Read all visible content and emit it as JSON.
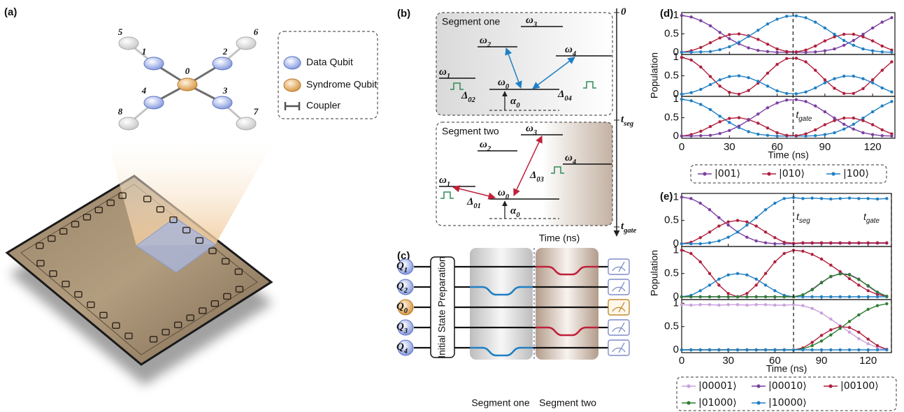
{
  "panel_a": {
    "label": "(a)",
    "qubits": [
      "0",
      "1",
      "2",
      "3",
      "4",
      "5",
      "6",
      "7",
      "8"
    ],
    "legend": [
      "Data Qubit",
      "Syndrome Qubit",
      "Coupler"
    ]
  },
  "panel_b": {
    "label": "(b)",
    "segments": [
      {
        "title": "Segment one",
        "levels": [
          {
            "sym": "ω",
            "sub": "0"
          },
          {
            "sym": "ω",
            "sub": "1"
          },
          {
            "sym": "ω",
            "sub": "2"
          },
          {
            "sym": "ω",
            "sub": "3"
          },
          {
            "sym": "ω",
            "sub": "4"
          }
        ],
        "couplings": [
          {
            "sym": "Δ",
            "sub": "02"
          },
          {
            "sym": "Δ",
            "sub": "04"
          }
        ],
        "anharmonicity": {
          "sym": "α",
          "sub": "0"
        }
      },
      {
        "title": "Segment two",
        "levels": [
          {
            "sym": "ω",
            "sub": "0"
          },
          {
            "sym": "ω",
            "sub": "1"
          },
          {
            "sym": "ω",
            "sub": "2"
          },
          {
            "sym": "ω",
            "sub": "3"
          },
          {
            "sym": "ω",
            "sub": "4"
          }
        ],
        "couplings": [
          {
            "sym": "Δ",
            "sub": "01"
          },
          {
            "sym": "Δ",
            "sub": "03"
          }
        ],
        "anharmonicity": {
          "sym": "α",
          "sub": "0"
        }
      }
    ],
    "time_ticks": [
      {
        "sym": "0",
        "sub": ""
      },
      {
        "sym": "t",
        "sub": "seg"
      },
      {
        "sym": "t",
        "sub": "gate"
      }
    ],
    "time_label": "Time (ns)"
  },
  "panel_c": {
    "label": "(c)",
    "qubits": [
      {
        "sym": "Q",
        "sub": "1"
      },
      {
        "sym": "Q",
        "sub": "2"
      },
      {
        "sym": "Q",
        "sub": "0"
      },
      {
        "sym": "Q",
        "sub": "3"
      },
      {
        "sym": "Q",
        "sub": "4"
      }
    ],
    "preparation": "Initial State Preparation",
    "segments": [
      "Segment one",
      "Segment two"
    ]
  },
  "chart_data": [
    {
      "type": "line",
      "panel_label": "(d)",
      "ylabel": "Population",
      "xlabel": "Time (ns)",
      "xlim": [
        0,
        134
      ],
      "xticks": [
        0,
        30,
        60,
        90,
        120
      ],
      "ylim": [
        -0.06,
        1.08
      ],
      "yticks": [
        0,
        0.5,
        1
      ],
      "vlines": [
        70
      ],
      "annotations": [
        {
          "sym": "t",
          "sub": "gate"
        }
      ],
      "legend": [
        {
          "name": "|001⟩",
          "color": "#7b3fa0"
        },
        {
          "name": "|010⟩",
          "color": "#b0203e"
        },
        {
          "name": "|100⟩",
          "color": "#1f7fc4"
        }
      ],
      "x": [
        0,
        6,
        12,
        18,
        24,
        30,
        36,
        42,
        48,
        54,
        60,
        66,
        72,
        78,
        84,
        90,
        96,
        102,
        108,
        114,
        120,
        126,
        132
      ],
      "rows": [
        {
          "series": [
            {
              "color": "#7b3fa0",
              "values": [
                1,
                0.96,
                0.86,
                0.72,
                0.54,
                0.37,
                0.23,
                0.12,
                0.05,
                0.02,
                0,
                0,
                0,
                0,
                0.01,
                0.04,
                0.09,
                0.19,
                0.32,
                0.49,
                0.66,
                0.82,
                0.94
              ]
            },
            {
              "color": "#b0203e",
              "values": [
                0,
                0.04,
                0.13,
                0.26,
                0.39,
                0.48,
                0.5,
                0.45,
                0.35,
                0.22,
                0.09,
                0.02,
                0.01,
                0.06,
                0.17,
                0.31,
                0.42,
                0.49,
                0.49,
                0.42,
                0.31,
                0.17,
                0.06
              ]
            },
            {
              "color": "#1f7fc4",
              "values": [
                0,
                0,
                0.01,
                0.02,
                0.07,
                0.15,
                0.27,
                0.43,
                0.6,
                0.77,
                0.9,
                0.98,
                0.99,
                0.94,
                0.82,
                0.66,
                0.49,
                0.32,
                0.19,
                0.09,
                0.04,
                0.01,
                0
              ]
            }
          ]
        },
        {
          "series": [
            {
              "color": "#b0203e",
              "values": [
                1,
                0.93,
                0.74,
                0.48,
                0.22,
                0.05,
                0,
                0.1,
                0.3,
                0.57,
                0.81,
                0.97,
                0.98,
                0.88,
                0.65,
                0.39,
                0.16,
                0.02,
                0.02,
                0.15,
                0.39,
                0.65,
                0.88
              ]
            },
            {
              "color": "#1f7fc4",
              "values": [
                0,
                0.04,
                0.13,
                0.26,
                0.39,
                0.48,
                0.5,
                0.45,
                0.35,
                0.22,
                0.09,
                0.02,
                0.01,
                0.06,
                0.17,
                0.31,
                0.42,
                0.49,
                0.49,
                0.42,
                0.31,
                0.17,
                0.06
              ]
            }
          ]
        },
        {
          "series": [
            {
              "color": "#1f7fc4",
              "values": [
                1,
                0.96,
                0.86,
                0.72,
                0.54,
                0.37,
                0.23,
                0.12,
                0.05,
                0.02,
                0,
                0,
                0,
                0,
                0.01,
                0.04,
                0.09,
                0.19,
                0.32,
                0.49,
                0.66,
                0.82,
                0.94
              ]
            },
            {
              "color": "#b0203e",
              "values": [
                0,
                0.04,
                0.13,
                0.26,
                0.39,
                0.48,
                0.5,
                0.45,
                0.35,
                0.22,
                0.09,
                0.02,
                0.01,
                0.06,
                0.17,
                0.31,
                0.42,
                0.49,
                0.49,
                0.42,
                0.31,
                0.17,
                0.06
              ]
            },
            {
              "color": "#7b3fa0",
              "values": [
                0,
                0,
                0.01,
                0.02,
                0.07,
                0.15,
                0.27,
                0.43,
                0.6,
                0.77,
                0.9,
                0.98,
                0.99,
                0.94,
                0.82,
                0.66,
                0.49,
                0.32,
                0.19,
                0.09,
                0.04,
                0.01,
                0
              ]
            }
          ]
        }
      ]
    },
    {
      "type": "line",
      "panel_label": "(e)",
      "ylabel": "Population",
      "xlabel": "Time (ns)",
      "xlim": [
        0,
        135
      ],
      "xticks": [
        0,
        30,
        60,
        90,
        120
      ],
      "ylim": [
        -0.06,
        1.08
      ],
      "yticks": [
        0,
        0.5,
        1
      ],
      "vlines": [
        72,
        135
      ],
      "annotations": [
        {
          "sym": "t",
          "sub": "seg"
        },
        {
          "sym": "t",
          "sub": "gate"
        }
      ],
      "legend": [
        {
          "name": "|00001⟩",
          "color": "#c9a0dc"
        },
        {
          "name": "|00010⟩",
          "color": "#7b3fa0"
        },
        {
          "name": "|00100⟩",
          "color": "#b0203e"
        },
        {
          "name": "|01000⟩",
          "color": "#2e7d32"
        },
        {
          "name": "|10000⟩",
          "color": "#1f7fc4"
        }
      ],
      "x": [
        0,
        6,
        12,
        18,
        24,
        30,
        36,
        42,
        48,
        54,
        60,
        66,
        72,
        78,
        84,
        90,
        96,
        102,
        108,
        114,
        120,
        126,
        132
      ],
      "rows": [
        {
          "series": [
            {
              "color": "#7b3fa0",
              "values": [
                1,
                0.97,
                0.87,
                0.73,
                0.56,
                0.4,
                0.25,
                0.14,
                0.06,
                0.02,
                0,
                0,
                0,
                0.01,
                0.01,
                0.01,
                0.01,
                0.01,
                0.01,
                0.01,
                0.01,
                0.01,
                0.01
              ]
            },
            {
              "color": "#b0203e",
              "values": [
                0,
                0.03,
                0.13,
                0.25,
                0.38,
                0.47,
                0.5,
                0.47,
                0.38,
                0.25,
                0.13,
                0.03,
                0.01,
                0.02,
                0.02,
                0.02,
                0.02,
                0.02,
                0.02,
                0.02,
                0.02,
                0.02,
                0.02
              ]
            },
            {
              "color": "#1f7fc4",
              "values": [
                0,
                0,
                0,
                0.02,
                0.06,
                0.14,
                0.25,
                0.4,
                0.56,
                0.73,
                0.87,
                0.97,
                0.99,
                0.97,
                0.98,
                0.97,
                0.96,
                0.97,
                0.98,
                0.97,
                0.97,
                0.96,
                0.97
              ]
            }
          ]
        },
        {
          "series": [
            {
              "color": "#b0203e",
              "values": [
                1,
                0.93,
                0.75,
                0.5,
                0.25,
                0.07,
                0,
                0.07,
                0.25,
                0.5,
                0.75,
                0.93,
                1,
                0.98,
                0.91,
                0.81,
                0.68,
                0.54,
                0.39,
                0.25,
                0.13,
                0.05,
                0.01
              ]
            },
            {
              "color": "#1f7fc4",
              "values": [
                0,
                0.03,
                0.13,
                0.25,
                0.38,
                0.47,
                0.5,
                0.47,
                0.38,
                0.25,
                0.13,
                0.03,
                0,
                0,
                0,
                0,
                0,
                0,
                0,
                0,
                0,
                0,
                0
              ]
            },
            {
              "color": "#7b3fa0",
              "values": [
                0,
                0,
                0,
                0,
                0,
                0,
                0,
                0,
                0,
                0,
                0,
                0,
                0,
                0.04,
                0.16,
                0.31,
                0.43,
                0.5,
                0.48,
                0.38,
                0.23,
                0.09,
                0.01
              ]
            },
            {
              "color": "#2e7d32",
              "values": [
                0,
                0,
                0,
                0,
                0,
                0,
                0,
                0,
                0,
                0,
                0,
                0,
                0,
                0.04,
                0.15,
                0.3,
                0.44,
                0.49,
                0.47,
                0.37,
                0.24,
                0.1,
                0.01
              ]
            }
          ]
        },
        {
          "series": [
            {
              "color": "#c9a0dc",
              "values": [
                0.97,
                0.96,
                0.97,
                0.97,
                0.96,
                0.97,
                0.97,
                0.96,
                0.97,
                0.97,
                0.96,
                0.96,
                0.97,
                0.95,
                0.89,
                0.79,
                0.66,
                0.52,
                0.38,
                0.24,
                0.13,
                0.05,
                0.01
              ]
            },
            {
              "color": "#b0203e",
              "values": [
                0,
                0,
                0,
                0,
                0,
                0,
                0,
                0,
                0,
                0,
                0,
                0,
                0,
                0.04,
                0.16,
                0.31,
                0.43,
                0.5,
                0.48,
                0.38,
                0.23,
                0.09,
                0.01
              ]
            },
            {
              "color": "#2e7d32",
              "values": [
                0,
                0,
                0,
                0,
                0,
                0,
                0,
                0,
                0,
                0,
                0,
                0,
                0,
                0.02,
                0.09,
                0.19,
                0.32,
                0.46,
                0.61,
                0.75,
                0.87,
                0.95,
                0.99
              ]
            },
            {
              "color": "#1f7fc4",
              "values": [
                0,
                0,
                0,
                0,
                0,
                0,
                0,
                0,
                0,
                0,
                0,
                0,
                0,
                0,
                0,
                0,
                0,
                0,
                0,
                0,
                0,
                0,
                0
              ]
            }
          ]
        }
      ]
    }
  ]
}
